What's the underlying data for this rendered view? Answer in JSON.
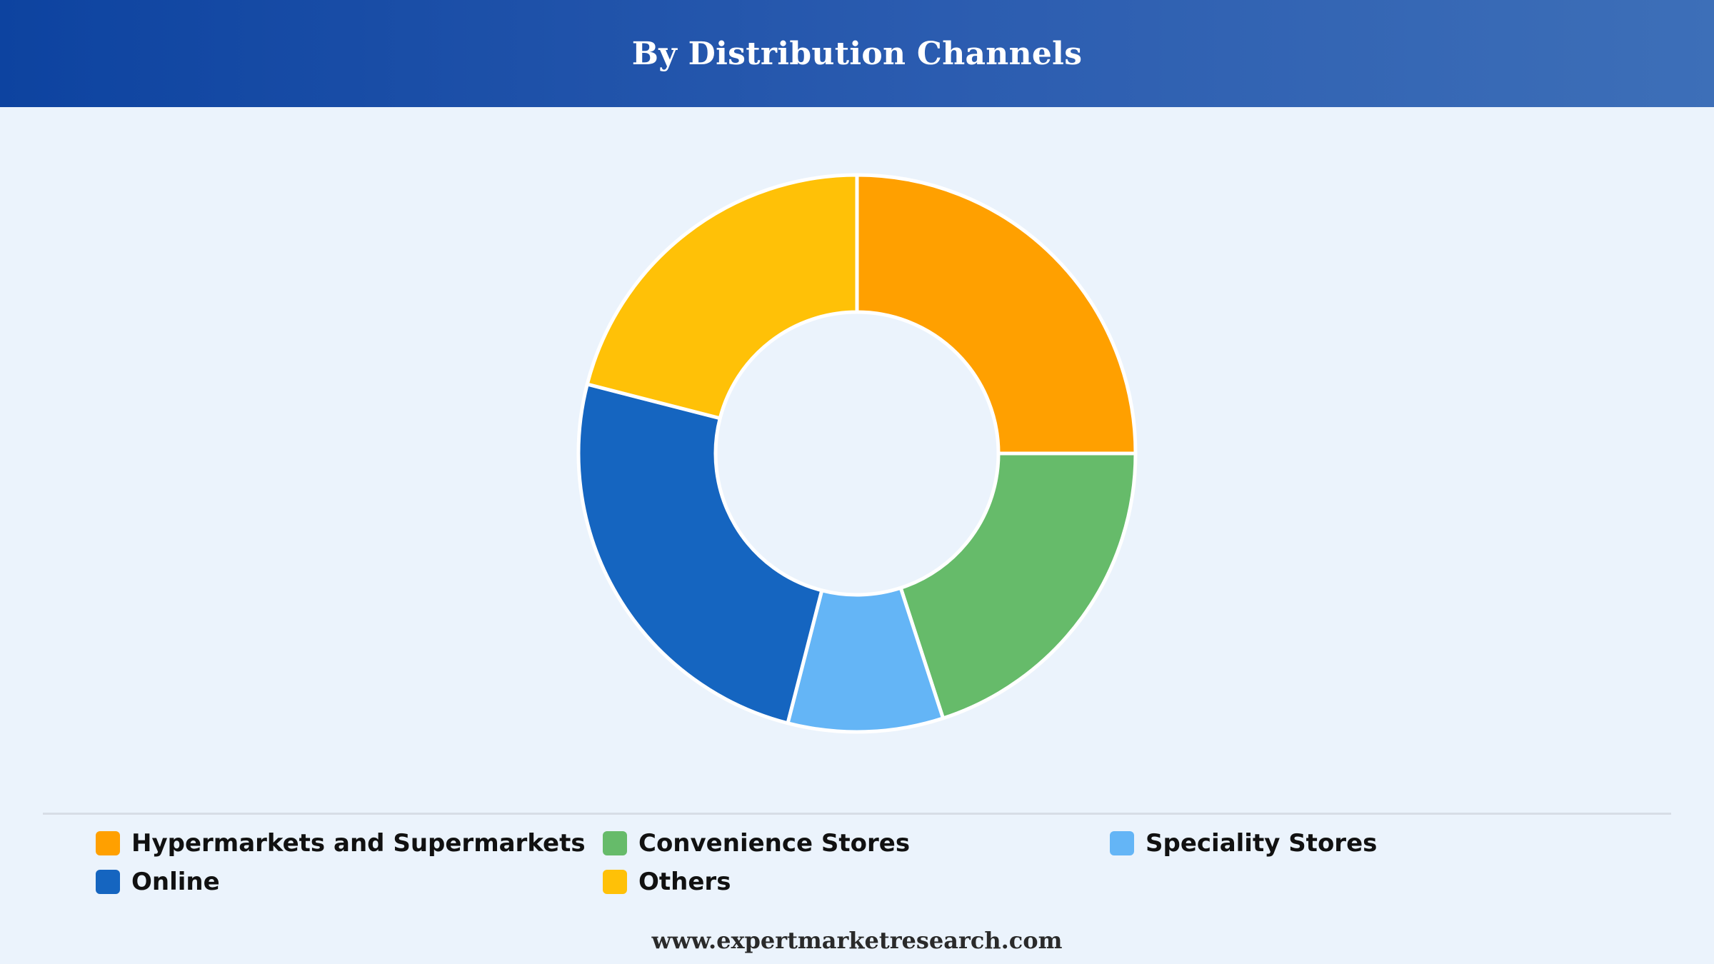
{
  "header": {
    "title": "By Distribution Channels"
  },
  "chart_data": {
    "type": "pie",
    "donut": true,
    "start_angle_deg": 0,
    "direction": "clockwise",
    "slice_stroke_color": "#ffffff",
    "categories": [
      "Hypermarkets and Supermarkets",
      "Convenience Stores",
      "Speciality Stores",
      "Online",
      "Others"
    ],
    "values": [
      25,
      20,
      9,
      25,
      21
    ],
    "colors": [
      "#ffa000",
      "#66bb6a",
      "#64b5f6",
      "#1565c0",
      "#ffc107"
    ],
    "legend_position": "bottom",
    "grid": false
  },
  "legend": {
    "items": [
      {
        "label": "Hypermarkets and Supermarkets",
        "color": "#ffa000"
      },
      {
        "label": "Convenience Stores",
        "color": "#66bb6a"
      },
      {
        "label": "Speciality Stores",
        "color": "#64b5f6"
      },
      {
        "label": "Online",
        "color": "#1565c0"
      },
      {
        "label": "Others",
        "color": "#ffc107"
      }
    ]
  },
  "footer": {
    "source": "www.expertmarketresearch.com"
  }
}
